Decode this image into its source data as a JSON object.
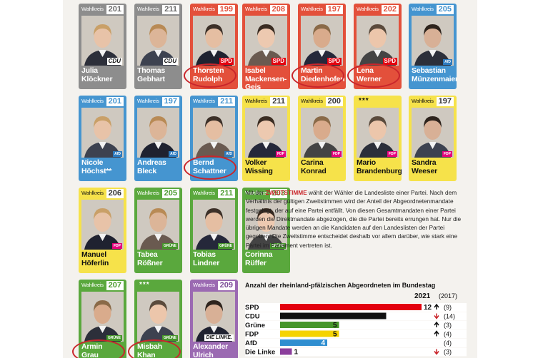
{
  "wahlkreis_label": "Wahlkreis",
  "candidates": [
    {
      "number": "201",
      "name": [
        "Julia",
        "Klöckner"
      ],
      "party_logo": "CDU",
      "color": "gray",
      "logo": "cdu",
      "circled": false
    },
    {
      "number": "211",
      "name": [
        "Thomas",
        "Gebhart"
      ],
      "party_logo": "CDU",
      "color": "gray",
      "logo": "cdu",
      "circled": false
    },
    {
      "number": "199",
      "name": [
        "Thorsten",
        "Rudolph"
      ],
      "party_logo": "SPD",
      "color": "red",
      "logo": "spd",
      "circled": true
    },
    {
      "number": "208",
      "name": [
        "Isabel",
        "Mackensen-",
        "Geis"
      ],
      "party_logo": "SPD",
      "color": "red",
      "logo": "spd",
      "circled": false
    },
    {
      "number": "197",
      "name": [
        "Martin",
        "Diedenhofen"
      ],
      "party_logo": "SPD",
      "color": "red",
      "logo": "spd",
      "circled": true
    },
    {
      "number": "202",
      "name": [
        "Lena",
        "Werner"
      ],
      "party_logo": "SPD",
      "color": "red",
      "logo": "spd",
      "circled": true
    },
    {
      "number": "205",
      "name": [
        "Sebastian",
        "Münzenmaier"
      ],
      "party_logo": "AfD",
      "color": "blue",
      "logo": "fw",
      "circled": false
    },
    {
      "number": "201",
      "name": [
        "Nicole",
        "Höchst**"
      ],
      "party_logo": "AfD",
      "color": "blue",
      "logo": "fw",
      "circled": false
    },
    {
      "number": "197",
      "name": [
        "Andreas",
        "Bleck"
      ],
      "party_logo": "AfD",
      "color": "blue",
      "logo": "fw",
      "circled": false
    },
    {
      "number": "211",
      "name": [
        "Bernd",
        "Schattner"
      ],
      "party_logo": "AfD",
      "color": "blue",
      "logo": "fw",
      "circled": true
    },
    {
      "number": "211",
      "name": [
        "Volker",
        "Wissing"
      ],
      "party_logo": "FDP",
      "color": "yellow",
      "logo": "fdp",
      "circled": false
    },
    {
      "number": "200",
      "name": [
        "Carina",
        "Konrad"
      ],
      "party_logo": "FDP",
      "color": "yellow",
      "logo": "fdp",
      "circled": false
    },
    {
      "number": "***",
      "name": [
        "Mario",
        "Brandenburg"
      ],
      "party_logo": "FDP",
      "color": "yellow",
      "logo": "fdp",
      "circled": false
    },
    {
      "number": "197",
      "name": [
        "Sandra",
        "Weeser"
      ],
      "party_logo": "FDP",
      "color": "yellow",
      "logo": "fdp",
      "circled": false
    },
    {
      "number": "206",
      "name": [
        "Manuel",
        "Höferlin"
      ],
      "party_logo": "FDP",
      "color": "yellow",
      "logo": "fdp",
      "circled": false
    },
    {
      "number": "205",
      "name": [
        "Tabea",
        "Rößner"
      ],
      "party_logo": "GRÜNE",
      "color": "green",
      "logo": "gruen",
      "circled": false
    },
    {
      "number": "211",
      "name": [
        "Tobias",
        "Lindner"
      ],
      "party_logo": "GRÜNE",
      "color": "green",
      "logo": "gruen",
      "circled": false
    },
    {
      "number": "203",
      "name": [
        "Corinna",
        "Rüffer"
      ],
      "party_logo": "GRÜNE",
      "color": "green",
      "logo": "gruen",
      "circled": false
    },
    {
      "number": "207",
      "name": [
        "Armin",
        "Grau"
      ],
      "party_logo": "GRÜNE",
      "color": "green",
      "logo": "gruen",
      "circled": true
    },
    {
      "number": "***",
      "name": [
        "Misbah",
        "Khan"
      ],
      "party_logo": "GRÜNE",
      "color": "green",
      "logo": "gruen",
      "circled": true
    },
    {
      "number": "209",
      "name": [
        "Alexander",
        "Ulrich"
      ],
      "party_logo": "DIE LINKE.",
      "color": "violet",
      "logo": "linke",
      "circled": false
    }
  ],
  "text": {
    "p1": "Mit der ",
    "keyword": "ZWEITSTIMME",
    "p2": " wählt der Wähler die Landesliste einer Partei. Nach dem Verhältnis der gültigen Zweitstimmen wird der Anteil der Abgeordnetenmandate festgelegt, der auf eine Partei entfällt. Von diesen Gesamtmandaten einer Partei werden die Direktmandate abgezogen, die die Partei bereits errungen hat. Nur die übrigen Mandate werden an die Kandidaten auf den Landeslisten der Partei gegeben. Die Zweitstimme entscheidet deshalb vor allem darüber, wie stark eine Partei im Parlament vertreten ist."
  },
  "chart_data": {
    "type": "bar",
    "title": "Anzahl der rheinland-pfälzischen Abgeordneten im Bundestag",
    "year_label": "2021",
    "prev_label": "(2017)",
    "categories": [
      "SPD",
      "CDU",
      "Grüne",
      "FDP",
      "AfD",
      "Die Linke"
    ],
    "values": [
      12,
      9,
      5,
      5,
      4,
      1
    ],
    "previous": [
      "(9)",
      "(14)",
      "(3)",
      "(4)",
      "(4)",
      "(3)"
    ],
    "trend": [
      "up",
      "down",
      "up",
      "up",
      "none",
      "down"
    ],
    "colors": [
      "#e3000f",
      "#111111",
      "#46962b",
      "#f5d300",
      "#2f8ed0",
      "#8b3d9b"
    ],
    "xlim": [
      0,
      12
    ]
  }
}
